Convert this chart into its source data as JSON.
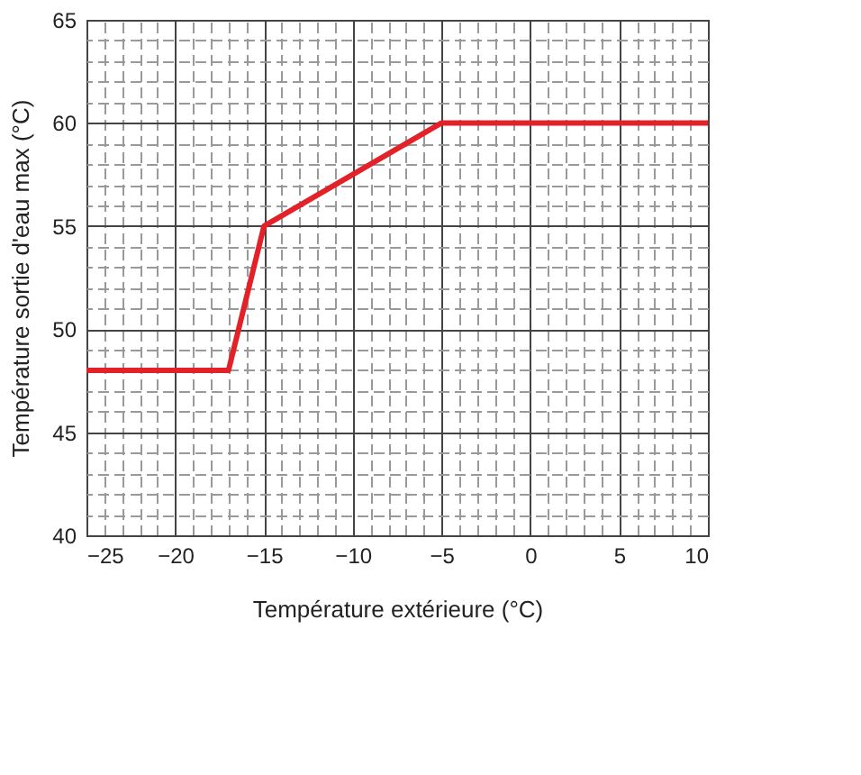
{
  "chart_data": {
    "type": "line",
    "xlabel": "Température extérieure (°C)",
    "ylabel": "Température sortie d'eau max (°C)",
    "x": [
      -25,
      -17,
      -15,
      -5,
      10
    ],
    "series": [
      {
        "color": "#e32128",
        "values": [
          48,
          48,
          55,
          60,
          60
        ]
      }
    ],
    "xlim": [
      -25,
      10
    ],
    "xticks": [
      -25,
      -20,
      -15,
      -10,
      -5,
      0,
      5,
      10
    ],
    "ylim": [
      40,
      65
    ],
    "yticks": [
      40,
      45,
      50,
      55,
      60,
      65
    ],
    "grid": true,
    "legend": false,
    "marker": "none",
    "line_style": "solid"
  }
}
